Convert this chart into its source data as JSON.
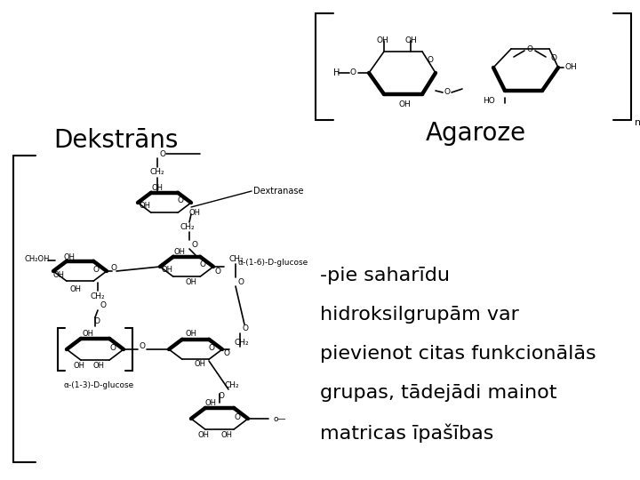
{
  "background_color": "#ffffff",
  "title_dekstrans": "Dekstrāns",
  "title_agaroze": "Agaroze",
  "description_lines": [
    "-pie saharīdu",
    "hidroksilgrupām var",
    "pievienot citas funkcionālās",
    "grupas, tādejādi mainot",
    "matricas īpašības"
  ],
  "title_fontsize": 20,
  "desc_fontsize": 16,
  "text_color": "#000000",
  "figsize": [
    7.2,
    5.4
  ],
  "dpi": 100
}
